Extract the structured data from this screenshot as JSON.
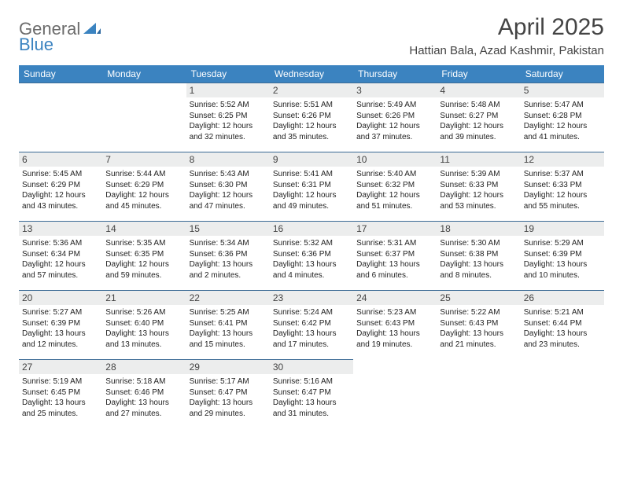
{
  "logo": {
    "part1": "General",
    "part2": "Blue"
  },
  "title": "April 2025",
  "location": "Hattian Bala, Azad Kashmir, Pakistan",
  "colors": {
    "header_bg": "#3b83c0",
    "header_text": "#ffffff",
    "border": "#3b6b95",
    "daynum_bg": "#eceded",
    "logo_gray": "#6b6b6b",
    "logo_blue": "#3b83c0",
    "page_bg": "#ffffff",
    "body_text": "#222222"
  },
  "typography": {
    "title_fontsize": 30,
    "location_fontsize": 15,
    "weekday_fontsize": 12,
    "daynum_fontsize": 12,
    "cell_fontsize": 10
  },
  "weekdays": [
    "Sunday",
    "Monday",
    "Tuesday",
    "Wednesday",
    "Thursday",
    "Friday",
    "Saturday"
  ],
  "weeks": [
    [
      null,
      null,
      {
        "n": "1",
        "sr": "Sunrise: 5:52 AM",
        "ss": "Sunset: 6:25 PM",
        "d1": "Daylight: 12 hours",
        "d2": "and 32 minutes."
      },
      {
        "n": "2",
        "sr": "Sunrise: 5:51 AM",
        "ss": "Sunset: 6:26 PM",
        "d1": "Daylight: 12 hours",
        "d2": "and 35 minutes."
      },
      {
        "n": "3",
        "sr": "Sunrise: 5:49 AM",
        "ss": "Sunset: 6:26 PM",
        "d1": "Daylight: 12 hours",
        "d2": "and 37 minutes."
      },
      {
        "n": "4",
        "sr": "Sunrise: 5:48 AM",
        "ss": "Sunset: 6:27 PM",
        "d1": "Daylight: 12 hours",
        "d2": "and 39 minutes."
      },
      {
        "n": "5",
        "sr": "Sunrise: 5:47 AM",
        "ss": "Sunset: 6:28 PM",
        "d1": "Daylight: 12 hours",
        "d2": "and 41 minutes."
      }
    ],
    [
      {
        "n": "6",
        "sr": "Sunrise: 5:45 AM",
        "ss": "Sunset: 6:29 PM",
        "d1": "Daylight: 12 hours",
        "d2": "and 43 minutes."
      },
      {
        "n": "7",
        "sr": "Sunrise: 5:44 AM",
        "ss": "Sunset: 6:29 PM",
        "d1": "Daylight: 12 hours",
        "d2": "and 45 minutes."
      },
      {
        "n": "8",
        "sr": "Sunrise: 5:43 AM",
        "ss": "Sunset: 6:30 PM",
        "d1": "Daylight: 12 hours",
        "d2": "and 47 minutes."
      },
      {
        "n": "9",
        "sr": "Sunrise: 5:41 AM",
        "ss": "Sunset: 6:31 PM",
        "d1": "Daylight: 12 hours",
        "d2": "and 49 minutes."
      },
      {
        "n": "10",
        "sr": "Sunrise: 5:40 AM",
        "ss": "Sunset: 6:32 PM",
        "d1": "Daylight: 12 hours",
        "d2": "and 51 minutes."
      },
      {
        "n": "11",
        "sr": "Sunrise: 5:39 AM",
        "ss": "Sunset: 6:33 PM",
        "d1": "Daylight: 12 hours",
        "d2": "and 53 minutes."
      },
      {
        "n": "12",
        "sr": "Sunrise: 5:37 AM",
        "ss": "Sunset: 6:33 PM",
        "d1": "Daylight: 12 hours",
        "d2": "and 55 minutes."
      }
    ],
    [
      {
        "n": "13",
        "sr": "Sunrise: 5:36 AM",
        "ss": "Sunset: 6:34 PM",
        "d1": "Daylight: 12 hours",
        "d2": "and 57 minutes."
      },
      {
        "n": "14",
        "sr": "Sunrise: 5:35 AM",
        "ss": "Sunset: 6:35 PM",
        "d1": "Daylight: 12 hours",
        "d2": "and 59 minutes."
      },
      {
        "n": "15",
        "sr": "Sunrise: 5:34 AM",
        "ss": "Sunset: 6:36 PM",
        "d1": "Daylight: 13 hours",
        "d2": "and 2 minutes."
      },
      {
        "n": "16",
        "sr": "Sunrise: 5:32 AM",
        "ss": "Sunset: 6:36 PM",
        "d1": "Daylight: 13 hours",
        "d2": "and 4 minutes."
      },
      {
        "n": "17",
        "sr": "Sunrise: 5:31 AM",
        "ss": "Sunset: 6:37 PM",
        "d1": "Daylight: 13 hours",
        "d2": "and 6 minutes."
      },
      {
        "n": "18",
        "sr": "Sunrise: 5:30 AM",
        "ss": "Sunset: 6:38 PM",
        "d1": "Daylight: 13 hours",
        "d2": "and 8 minutes."
      },
      {
        "n": "19",
        "sr": "Sunrise: 5:29 AM",
        "ss": "Sunset: 6:39 PM",
        "d1": "Daylight: 13 hours",
        "d2": "and 10 minutes."
      }
    ],
    [
      {
        "n": "20",
        "sr": "Sunrise: 5:27 AM",
        "ss": "Sunset: 6:39 PM",
        "d1": "Daylight: 13 hours",
        "d2": "and 12 minutes."
      },
      {
        "n": "21",
        "sr": "Sunrise: 5:26 AM",
        "ss": "Sunset: 6:40 PM",
        "d1": "Daylight: 13 hours",
        "d2": "and 13 minutes."
      },
      {
        "n": "22",
        "sr": "Sunrise: 5:25 AM",
        "ss": "Sunset: 6:41 PM",
        "d1": "Daylight: 13 hours",
        "d2": "and 15 minutes."
      },
      {
        "n": "23",
        "sr": "Sunrise: 5:24 AM",
        "ss": "Sunset: 6:42 PM",
        "d1": "Daylight: 13 hours",
        "d2": "and 17 minutes."
      },
      {
        "n": "24",
        "sr": "Sunrise: 5:23 AM",
        "ss": "Sunset: 6:43 PM",
        "d1": "Daylight: 13 hours",
        "d2": "and 19 minutes."
      },
      {
        "n": "25",
        "sr": "Sunrise: 5:22 AM",
        "ss": "Sunset: 6:43 PM",
        "d1": "Daylight: 13 hours",
        "d2": "and 21 minutes."
      },
      {
        "n": "26",
        "sr": "Sunrise: 5:21 AM",
        "ss": "Sunset: 6:44 PM",
        "d1": "Daylight: 13 hours",
        "d2": "and 23 minutes."
      }
    ],
    [
      {
        "n": "27",
        "sr": "Sunrise: 5:19 AM",
        "ss": "Sunset: 6:45 PM",
        "d1": "Daylight: 13 hours",
        "d2": "and 25 minutes."
      },
      {
        "n": "28",
        "sr": "Sunrise: 5:18 AM",
        "ss": "Sunset: 6:46 PM",
        "d1": "Daylight: 13 hours",
        "d2": "and 27 minutes."
      },
      {
        "n": "29",
        "sr": "Sunrise: 5:17 AM",
        "ss": "Sunset: 6:47 PM",
        "d1": "Daylight: 13 hours",
        "d2": "and 29 minutes."
      },
      {
        "n": "30",
        "sr": "Sunrise: 5:16 AM",
        "ss": "Sunset: 6:47 PM",
        "d1": "Daylight: 13 hours",
        "d2": "and 31 minutes."
      },
      null,
      null,
      null
    ]
  ]
}
